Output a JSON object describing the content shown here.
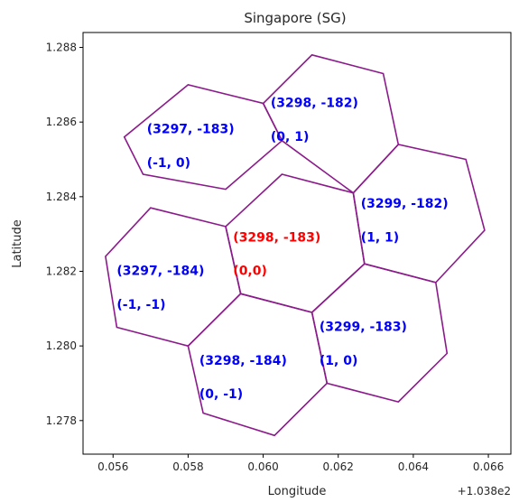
{
  "chart_data": {
    "type": "scatter",
    "title": "Singapore (SG)",
    "xlabel": "Longitude",
    "ylabel": "Latitude",
    "offset_label": "+1.038e2",
    "x_offset": 103.8,
    "xlim": [
      0.0552,
      0.0666
    ],
    "ylim": [
      1.2771,
      1.2884
    ],
    "x_ticks": [
      0.056,
      0.058,
      0.06,
      0.062,
      0.064,
      0.066
    ],
    "x_tick_labels": [
      "0.056",
      "0.058",
      "0.060",
      "0.062",
      "0.064",
      "0.066"
    ],
    "y_ticks": [
      1.278,
      1.28,
      1.282,
      1.284,
      1.286,
      1.288
    ],
    "y_tick_labels": [
      "1.278",
      "1.280",
      "1.282",
      "1.284",
      "1.286",
      "1.288"
    ],
    "grid": false,
    "edge_color": "#8b1a8b",
    "cells": [
      {
        "id": "3297,-183",
        "label": "(3297, -183)",
        "rel_label": "(-1, 0)",
        "color": "#0000ff",
        "polygon": [
          [
            0.059,
            1.2842
          ],
          [
            0.0568,
            1.2846
          ],
          [
            0.0563,
            1.2856
          ],
          [
            0.058,
            1.287
          ],
          [
            0.06,
            1.2865
          ],
          [
            0.0605,
            1.2855
          ]
        ],
        "label_pos": [
          0.0569,
          1.2857
        ],
        "rel_pos": [
          0.0569,
          1.2848
        ]
      },
      {
        "id": "3298,-182",
        "label": "(3298, -182)",
        "rel_label": "(0, 1)",
        "color": "#0000ff",
        "polygon": [
          [
            0.0605,
            1.2855
          ],
          [
            0.06,
            1.2865
          ],
          [
            0.0613,
            1.2878
          ],
          [
            0.0632,
            1.2873
          ],
          [
            0.0636,
            1.2854
          ],
          [
            0.0624,
            1.2841
          ]
        ],
        "label_pos": [
          0.0602,
          1.2864
        ],
        "rel_pos": [
          0.0602,
          1.2855
        ]
      },
      {
        "id": "3297,-184",
        "label": "(3297, -184)",
        "rel_label": "(-1, -1)",
        "color": "#0000ff",
        "polygon": [
          [
            0.057,
            1.2837
          ],
          [
            0.0558,
            1.2824
          ],
          [
            0.0561,
            1.2805
          ],
          [
            0.058,
            1.28
          ],
          [
            0.0594,
            1.2814
          ],
          [
            0.059,
            1.2832
          ]
        ],
        "label_pos": [
          0.0561,
          1.2819
        ],
        "rel_pos": [
          0.0561,
          1.281
        ]
      },
      {
        "id": "3298,-183",
        "label": "(3298, -183)",
        "rel_label": "(0,0)",
        "color": "#ff0000",
        "polygon": [
          [
            0.0605,
            1.2846
          ],
          [
            0.059,
            1.2832
          ],
          [
            0.0594,
            1.2814
          ],
          [
            0.0613,
            1.2809
          ],
          [
            0.0627,
            1.2822
          ],
          [
            0.0624,
            1.2841
          ]
        ],
        "label_pos": [
          0.0592,
          1.2828
        ],
        "rel_pos": [
          0.0592,
          1.2819
        ]
      },
      {
        "id": "3299,-182",
        "label": "(3299, -182)",
        "rel_label": "(1, 1)",
        "color": "#0000ff",
        "polygon": [
          [
            0.0636,
            1.2854
          ],
          [
            0.0624,
            1.2841
          ],
          [
            0.0627,
            1.2822
          ],
          [
            0.0646,
            1.2817
          ],
          [
            0.0659,
            1.2831
          ],
          [
            0.0654,
            1.285
          ]
        ],
        "label_pos": [
          0.0626,
          1.2837
        ],
        "rel_pos": [
          0.0626,
          1.2828
        ]
      },
      {
        "id": "3298,-184",
        "label": "(3298, -184)",
        "rel_label": "(0, -1)",
        "color": "#0000ff",
        "polygon": [
          [
            0.0594,
            1.2814
          ],
          [
            0.058,
            1.28
          ],
          [
            0.0584,
            1.2782
          ],
          [
            0.0603,
            1.2776
          ],
          [
            0.0617,
            1.279
          ],
          [
            0.0613,
            1.2809
          ]
        ],
        "label_pos": [
          0.0583,
          1.2795
        ],
        "rel_pos": [
          0.0583,
          1.2786
        ]
      },
      {
        "id": "3299,-183",
        "label": "(3299, -183)",
        "rel_label": "(1, 0)",
        "color": "#0000ff",
        "polygon": [
          [
            0.0627,
            1.2822
          ],
          [
            0.0613,
            1.2809
          ],
          [
            0.0617,
            1.279
          ],
          [
            0.0636,
            1.2785
          ],
          [
            0.0649,
            1.2798
          ],
          [
            0.0646,
            1.2817
          ]
        ],
        "label_pos": [
          0.0615,
          1.2804
        ],
        "rel_pos": [
          0.0615,
          1.2795
        ]
      }
    ]
  }
}
